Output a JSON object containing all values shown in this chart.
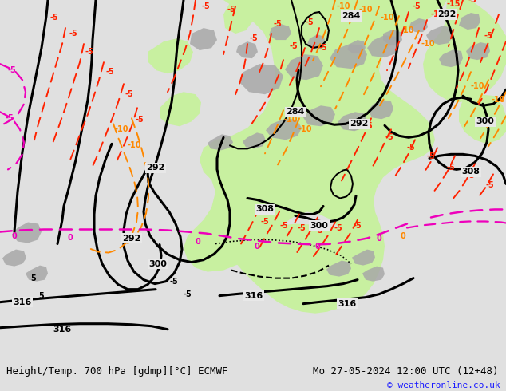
{
  "title_left": "Height/Temp. 700 hPa [gdmp][°C] ECMWF",
  "title_right": "Mo 27-05-2024 12:00 UTC (12+48)",
  "copyright": "© weatheronline.co.uk",
  "bg_color": "#e0e0e0",
  "map_bg": "#e8e8e8",
  "green_fill": "#c8f0a0",
  "gray_fill": "#a8a8a8",
  "bottom_bar_color": "#f0f0f0",
  "font_size_title": 9,
  "font_size_copy": 8
}
